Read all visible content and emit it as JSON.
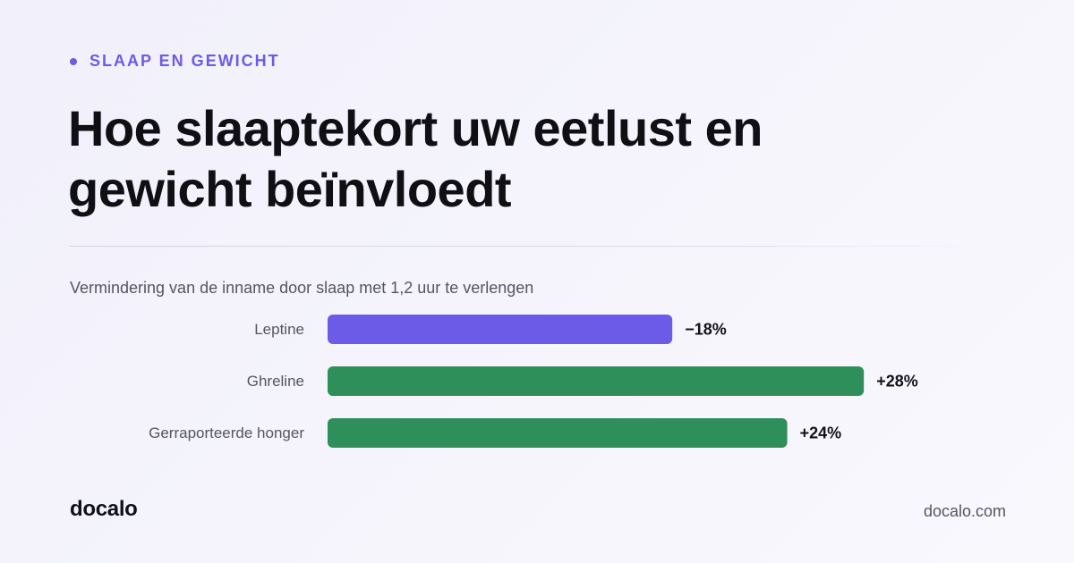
{
  "kicker": "SLAAP EN GEWICHT",
  "headline_line1": "Hoe slaaptekort uw eetlust en",
  "headline_line2": "gewicht beïnvloedt",
  "chart_data": {
    "type": "bar",
    "orientation": "horizontal",
    "subtitle": "Vermindering van de inname door slaap met 1,2 uur te verlengen",
    "categories": [
      "Leptine",
      "Ghreline",
      "Gerraporteerde honger"
    ],
    "values": [
      -18,
      28,
      24
    ],
    "value_labels": [
      "−18%",
      "+28%",
      "+24%"
    ],
    "colors": [
      "#6b5be6",
      "#2e8f5a",
      "#2e8f5a"
    ],
    "xlim": [
      0,
      28
    ],
    "grid": false
  },
  "footer": {
    "logo": "docalo",
    "url": "docalo.com"
  }
}
